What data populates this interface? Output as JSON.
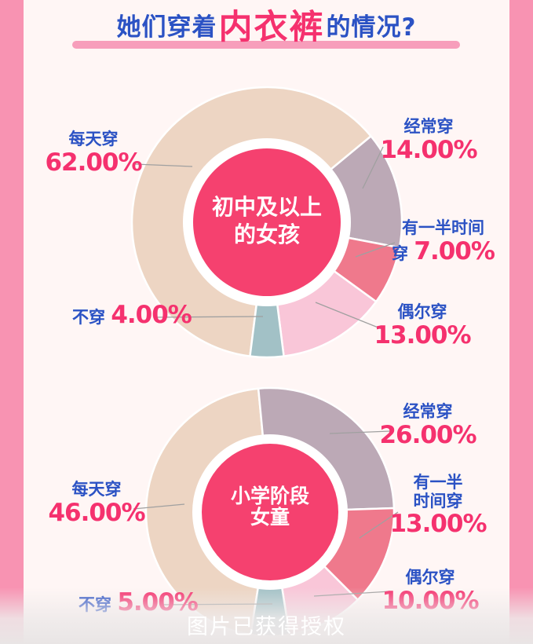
{
  "page": {
    "background": "#FFF6F5",
    "side_band_color": "#F893B2",
    "accent_blue": "#2B52C4",
    "accent_pink": "#F5316E",
    "underline_color": "#F79EBB",
    "connector_color": "#A0A0A0"
  },
  "title": {
    "part1": "她们穿着",
    "part2": "内衣裤",
    "part3": "的情况?"
  },
  "footer": {
    "text": "图片已获得授权"
  },
  "chart_data": [
    {
      "type": "pie",
      "variant": "donut",
      "title": "初中及以上的女孩",
      "center_lines": [
        "初中及以上",
        "的女孩"
      ],
      "center_color": "#F5416F",
      "start_angle_deg": 187.2,
      "legend_position": "callouts-around",
      "segments": [
        {
          "label": "每天穿",
          "value": 62.0,
          "display": "62.00%",
          "color": "#EDD5C3"
        },
        {
          "label": "经常穿",
          "value": 14.0,
          "display": "14.00%",
          "color": "#BCA9B6"
        },
        {
          "label": "有一半时间穿",
          "value": 7.0,
          "display": "7.00%",
          "color": "#EF798C"
        },
        {
          "label": "偶尔穿",
          "value": 13.0,
          "display": "13.00%",
          "color": "#F9C6D8"
        },
        {
          "label": "不穿",
          "value": 4.0,
          "display": "4.00%",
          "color": "#A2C1C6"
        }
      ],
      "callouts": [
        {
          "lines": [
            [
              {
                "t": "每天穿",
                "c": "blue-sm"
              }
            ],
            [
              {
                "t": "62.00%",
                "c": "pink-lg"
              }
            ]
          ]
        },
        {
          "lines": [
            [
              {
                "t": "经常穿",
                "c": "blue-sm"
              }
            ],
            [
              {
                "t": "14.00%",
                "c": "pink-lg"
              }
            ]
          ]
        },
        {
          "lines": [
            [
              {
                "t": "有一半时间",
                "c": "blue-sm"
              }
            ],
            [
              {
                "t": "穿 ",
                "c": "blue-sm"
              },
              {
                "t": "7.00%",
                "c": "pink-lg"
              }
            ]
          ]
        },
        {
          "lines": [
            [
              {
                "t": "偶尔穿",
                "c": "blue-sm"
              }
            ],
            [
              {
                "t": "13.00%",
                "c": "pink-lg"
              }
            ]
          ]
        },
        {
          "lines": [
            [
              {
                "t": "不穿 ",
                "c": "blue-sm"
              },
              {
                "t": "4.00%",
                "c": "pink-lg"
              }
            ]
          ]
        }
      ]
    },
    {
      "type": "pie",
      "variant": "donut",
      "title": "小学阶段女童",
      "center_lines": [
        "小学阶段",
        "女童"
      ],
      "center_color": "#F5416F",
      "start_angle_deg": 189.0,
      "legend_position": "callouts-around",
      "segments": [
        {
          "label": "每天穿",
          "value": 46.0,
          "display": "46.00%",
          "color": "#EDD5C3"
        },
        {
          "label": "经常穿",
          "value": 26.0,
          "display": "26.00%",
          "color": "#BCA9B6"
        },
        {
          "label": "有一半时间穿",
          "value": 13.0,
          "display": "13.00%",
          "color": "#EF798C"
        },
        {
          "label": "偶尔穿",
          "value": 10.0,
          "display": "10.00%",
          "color": "#F9C6D8"
        },
        {
          "label": "不穿",
          "value": 5.0,
          "display": "5.00%",
          "color": "#A2C1C6"
        }
      ],
      "callouts": [
        {
          "lines": [
            [
              {
                "t": "每天穿",
                "c": "blue-sm"
              }
            ],
            [
              {
                "t": "46.00%",
                "c": "pink-lg"
              }
            ]
          ]
        },
        {
          "lines": [
            [
              {
                "t": "经常穿",
                "c": "blue-sm"
              }
            ],
            [
              {
                "t": "26.00%",
                "c": "pink-lg"
              }
            ]
          ]
        },
        {
          "lines": [
            [
              {
                "t": "有一半",
                "c": "blue-sm"
              }
            ],
            [
              {
                "t": "时间穿",
                "c": "blue-sm"
              }
            ],
            [
              {
                "t": "13.00%",
                "c": "pink-lg"
              }
            ]
          ]
        },
        {
          "lines": [
            [
              {
                "t": "偶尔穿",
                "c": "blue-sm"
              }
            ],
            [
              {
                "t": "10.00%",
                "c": "pink-lg"
              }
            ]
          ]
        },
        {
          "lines": [
            [
              {
                "t": "不穿 ",
                "c": "blue-sm"
              },
              {
                "t": "5.00%",
                "c": "pink-lg"
              }
            ]
          ]
        }
      ]
    }
  ]
}
